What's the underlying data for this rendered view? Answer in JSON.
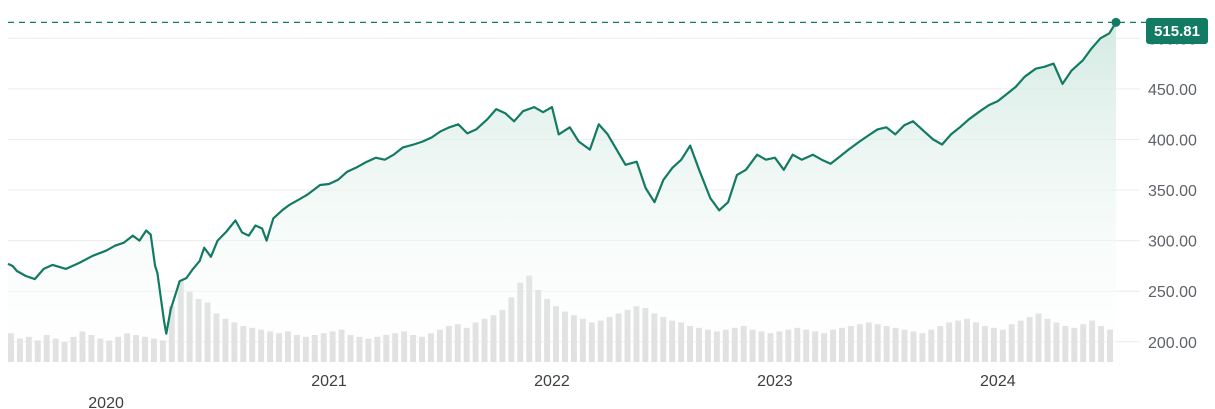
{
  "colors": {
    "line": "#137a63",
    "fill_top": "#cfe8df",
    "volume": "#d9d9d9",
    "grid": "#ececec",
    "badge_bg": "#137a63"
  },
  "current_price_label": "515.81",
  "chart_data": {
    "type": "line",
    "title": "",
    "xlabel": "",
    "ylabel": "",
    "ylim": [
      180,
      530
    ],
    "xlim": [
      2019.56,
      2024.53
    ],
    "grid": true,
    "reference_line": 515.81,
    "y_ticks": [
      "200.00",
      "250.00",
      "300.00",
      "350.00",
      "400.00",
      "450.00",
      "500.00"
    ],
    "x_ticks": [
      {
        "value": 2020,
        "label": "2020"
      },
      {
        "value": 2021,
        "label": "2021"
      },
      {
        "value": 2022,
        "label": "2022"
      },
      {
        "value": 2023,
        "label": "2023"
      },
      {
        "value": 2024,
        "label": "2024"
      }
    ],
    "series": [
      {
        "kind": "price",
        "points": [
          [
            2019.56,
            277
          ],
          [
            2019.58,
            275
          ],
          [
            2019.6,
            270
          ],
          [
            2019.64,
            265
          ],
          [
            2019.68,
            262
          ],
          [
            2019.72,
            272
          ],
          [
            2019.76,
            276
          ],
          [
            2019.82,
            272
          ],
          [
            2019.88,
            278
          ],
          [
            2019.94,
            285
          ],
          [
            2020.0,
            290
          ],
          [
            2020.04,
            295
          ],
          [
            2020.08,
            298
          ],
          [
            2020.12,
            305
          ],
          [
            2020.15,
            300
          ],
          [
            2020.18,
            310
          ],
          [
            2020.2,
            306
          ],
          [
            2020.22,
            275
          ],
          [
            2020.23,
            268
          ],
          [
            2020.26,
            220
          ],
          [
            2020.27,
            208
          ],
          [
            2020.29,
            232
          ],
          [
            2020.33,
            260
          ],
          [
            2020.36,
            263
          ],
          [
            2020.39,
            272
          ],
          [
            2020.42,
            280
          ],
          [
            2020.44,
            293
          ],
          [
            2020.47,
            284
          ],
          [
            2020.5,
            300
          ],
          [
            2020.54,
            309
          ],
          [
            2020.58,
            320
          ],
          [
            2020.61,
            308
          ],
          [
            2020.64,
            305
          ],
          [
            2020.67,
            315
          ],
          [
            2020.7,
            312
          ],
          [
            2020.72,
            300
          ],
          [
            2020.75,
            322
          ],
          [
            2020.79,
            330
          ],
          [
            2020.82,
            335
          ],
          [
            2020.86,
            340
          ],
          [
            2020.9,
            345
          ],
          [
            2020.93,
            350
          ],
          [
            2020.96,
            355
          ],
          [
            2021.0,
            356
          ],
          [
            2021.04,
            360
          ],
          [
            2021.08,
            368
          ],
          [
            2021.12,
            372
          ],
          [
            2021.17,
            378
          ],
          [
            2021.21,
            382
          ],
          [
            2021.25,
            380
          ],
          [
            2021.29,
            385
          ],
          [
            2021.33,
            392
          ],
          [
            2021.38,
            395
          ],
          [
            2021.42,
            398
          ],
          [
            2021.46,
            402
          ],
          [
            2021.5,
            408
          ],
          [
            2021.54,
            412
          ],
          [
            2021.58,
            415
          ],
          [
            2021.62,
            406
          ],
          [
            2021.66,
            410
          ],
          [
            2021.71,
            420
          ],
          [
            2021.75,
            430
          ],
          [
            2021.79,
            426
          ],
          [
            2021.83,
            418
          ],
          [
            2021.87,
            428
          ],
          [
            2021.92,
            432
          ],
          [
            2021.96,
            427
          ],
          [
            2022.0,
            432
          ],
          [
            2022.03,
            405
          ],
          [
            2022.08,
            412
          ],
          [
            2022.12,
            398
          ],
          [
            2022.17,
            390
          ],
          [
            2022.21,
            415
          ],
          [
            2022.25,
            405
          ],
          [
            2022.29,
            390
          ],
          [
            2022.33,
            375
          ],
          [
            2022.38,
            378
          ],
          [
            2022.42,
            352
          ],
          [
            2022.46,
            338
          ],
          [
            2022.5,
            360
          ],
          [
            2022.54,
            372
          ],
          [
            2022.58,
            380
          ],
          [
            2022.62,
            394
          ],
          [
            2022.66,
            370
          ],
          [
            2022.71,
            342
          ],
          [
            2022.75,
            330
          ],
          [
            2022.79,
            338
          ],
          [
            2022.83,
            365
          ],
          [
            2022.87,
            370
          ],
          [
            2022.92,
            385
          ],
          [
            2022.96,
            380
          ],
          [
            2023.0,
            382
          ],
          [
            2023.04,
            370
          ],
          [
            2023.08,
            385
          ],
          [
            2023.12,
            380
          ],
          [
            2023.17,
            385
          ],
          [
            2023.21,
            380
          ],
          [
            2023.25,
            376
          ],
          [
            2023.29,
            383
          ],
          [
            2023.33,
            390
          ],
          [
            2023.38,
            398
          ],
          [
            2023.42,
            404
          ],
          [
            2023.46,
            410
          ],
          [
            2023.5,
            412
          ],
          [
            2023.54,
            405
          ],
          [
            2023.58,
            414
          ],
          [
            2023.62,
            418
          ],
          [
            2023.66,
            410
          ],
          [
            2023.71,
            400
          ],
          [
            2023.75,
            395
          ],
          [
            2023.79,
            405
          ],
          [
            2023.83,
            412
          ],
          [
            2023.87,
            420
          ],
          [
            2023.92,
            428
          ],
          [
            2023.96,
            434
          ],
          [
            2024.0,
            438
          ],
          [
            2024.04,
            445
          ],
          [
            2024.08,
            452
          ],
          [
            2024.12,
            462
          ],
          [
            2024.17,
            470
          ],
          [
            2024.21,
            472
          ],
          [
            2024.25,
            475
          ],
          [
            2024.27,
            465
          ],
          [
            2024.29,
            455
          ],
          [
            2024.33,
            468
          ],
          [
            2024.38,
            478
          ],
          [
            2024.42,
            490
          ],
          [
            2024.46,
            500
          ],
          [
            2024.5,
            505
          ],
          [
            2024.53,
            515.81
          ]
        ]
      }
    ],
    "volume": [
      32,
      26,
      28,
      24,
      30,
      26,
      22,
      28,
      34,
      30,
      26,
      24,
      28,
      32,
      30,
      28,
      26,
      24,
      62,
      90,
      78,
      70,
      66,
      54,
      48,
      44,
      40,
      38,
      36,
      34,
      32,
      34,
      30,
      28,
      30,
      32,
      34,
      36,
      30,
      28,
      26,
      28,
      30,
      32,
      34,
      30,
      28,
      32,
      36,
      40,
      42,
      38,
      44,
      48,
      52,
      58,
      72,
      88,
      96,
      80,
      70,
      62,
      56,
      52,
      48,
      44,
      46,
      50,
      54,
      58,
      62,
      60,
      54,
      50,
      46,
      44,
      40,
      38,
      36,
      34,
      36,
      38,
      40,
      36,
      34,
      32,
      34,
      36,
      38,
      36,
      34,
      32,
      36,
      38,
      40,
      42,
      44,
      42,
      40,
      38,
      36,
      34,
      32,
      36,
      40,
      44,
      46,
      48,
      44,
      40,
      38,
      36,
      42,
      46,
      50,
      54,
      48,
      44,
      40,
      38,
      42,
      46,
      40,
      36
    ]
  }
}
